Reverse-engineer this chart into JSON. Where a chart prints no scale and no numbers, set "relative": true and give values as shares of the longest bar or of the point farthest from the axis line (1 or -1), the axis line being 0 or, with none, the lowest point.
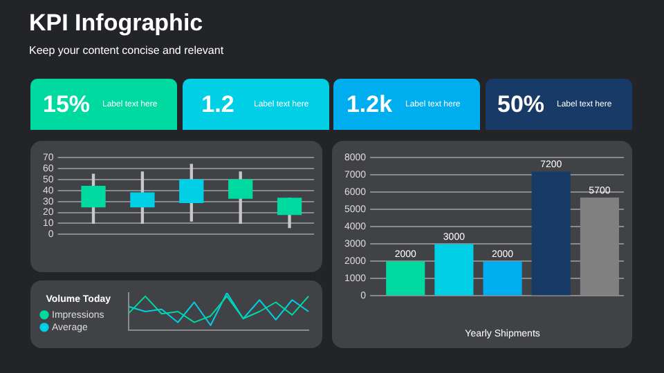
{
  "chart_data": [
    {
      "type": "other",
      "title": "KPI Infographic",
      "subtitle": "Keep your content concise and relevant",
      "categories": [
        "Label text here",
        "Label text here",
        "Label text here",
        "Label text here"
      ],
      "values": [
        15,
        1.2,
        1200,
        50
      ],
      "value_labels": [
        "15%",
        "1.2",
        "1.2k",
        "50%"
      ],
      "colors": [
        "#00d9a0",
        "#00cfe6",
        "#00aef0",
        "#173a66"
      ]
    },
    {
      "type": "candlestick",
      "categories": [
        null,
        null,
        null,
        null,
        null
      ],
      "ohlc": [
        [
          25,
          55,
          10,
          44
        ],
        [
          38,
          57,
          10,
          25
        ],
        [
          50,
          64,
          12,
          29
        ],
        [
          33,
          57,
          10,
          50
        ],
        [
          18,
          33,
          6,
          33
        ]
      ],
      "colors": [
        "#00d9a0",
        "#00cfe6",
        "#00cfe6",
        "#00d9a0",
        "#00d9a0"
      ],
      "ylim": [
        0,
        70
      ],
      "yticks": [
        0,
        10,
        20,
        30,
        40,
        50,
        60,
        70
      ],
      "grid": "y"
    },
    {
      "type": "line",
      "relative": true,
      "legend_title": "Volume Today",
      "legend": "left",
      "categories": [
        null,
        null,
        null,
        null,
        null,
        null,
        null,
        null,
        null,
        null,
        null,
        null
      ],
      "series": [
        {
          "name": "Impressions",
          "color": "#00d9a0",
          "values": [
            0.46,
            0.91,
            0.44,
            0.5,
            0.21,
            0.38,
            0.91,
            0.31,
            0.5,
            0.75,
            0.41,
            0.91
          ]
        },
        {
          "name": "Average",
          "color": "#00cfe6",
          "values": [
            0.63,
            0.5,
            0.56,
            0.21,
            0.75,
            0.13,
            1,
            0.31,
            0.81,
            0.28,
            0.81,
            0.5
          ]
        }
      ]
    },
    {
      "type": "bar",
      "xlabel": "Yearly Shipments",
      "categories": [
        null,
        null,
        null,
        null,
        null
      ],
      "values": [
        2000,
        3000,
        2000,
        7200,
        5700
      ],
      "colors": [
        "#00d9a0",
        "#00cfe6",
        "#00aef0",
        "#173a66",
        "#808080"
      ],
      "data_labels": true,
      "ylim": [
        0,
        8000
      ],
      "yticks": [
        0,
        1000,
        2000,
        3000,
        4000,
        5000,
        6000,
        7000,
        8000
      ],
      "grid": "y"
    }
  ]
}
